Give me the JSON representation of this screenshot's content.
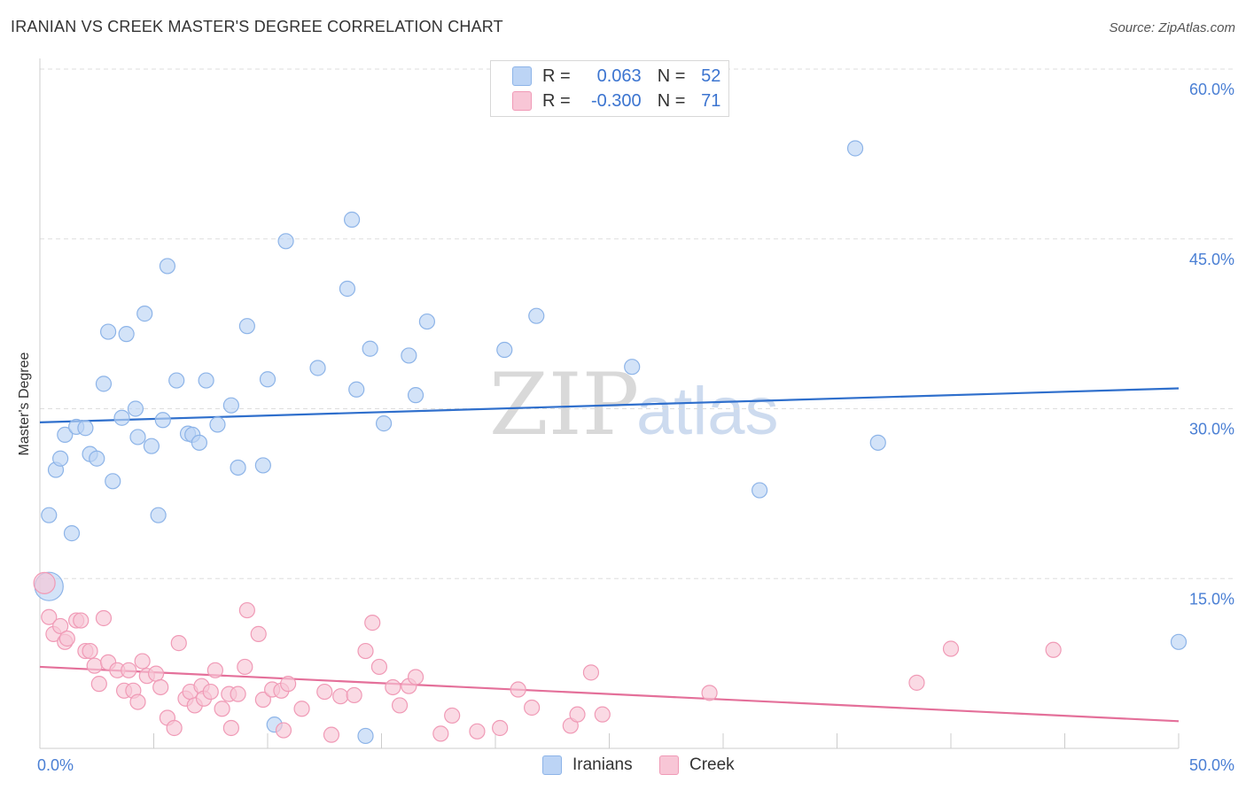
{
  "title": "IRANIAN VS CREEK MASTER'S DEGREE CORRELATION CHART",
  "source": "Source: ZipAtlas.com",
  "watermark": {
    "zip": "ZIP",
    "atlas": "atlas"
  },
  "colors": {
    "iranians_fill": "#bcd4f5",
    "iranians_stroke": "#8db4e8",
    "iranians_line": "#2f6fcc",
    "creek_fill": "#f8c6d6",
    "creek_stroke": "#f09ab6",
    "creek_line": "#e4709a",
    "tick_label": "#4a7fd4",
    "grid": "#dddddd"
  },
  "legend": {
    "rows": [
      {
        "r_label": "R =",
        "r_value": "0.063",
        "n_label": "N =",
        "n_value": "52"
      },
      {
        "r_label": "R =",
        "r_value": "-0.300",
        "n_label": "N =",
        "n_value": "71"
      }
    ],
    "bottom": [
      "Iranians",
      "Creek"
    ]
  },
  "chart_data": {
    "type": "scatter",
    "title": "IRANIAN VS CREEK MASTER'S DEGREE CORRELATION CHART",
    "xlabel": "",
    "ylabel": "Master's Degree",
    "xlim": [
      0,
      50
    ],
    "ylim": [
      0,
      60
    ],
    "x_tick_labels": [
      "0.0%",
      "50.0%"
    ],
    "y_ticks": [
      15,
      30,
      45,
      60
    ],
    "y_tick_labels": [
      "15.0%",
      "30.0%",
      "45.0%",
      "60.0%"
    ],
    "grid": true,
    "series": [
      {
        "name": "Iranians",
        "r": 0.063,
        "n": 52,
        "trend": {
          "x": [
            0,
            50
          ],
          "y": [
            28.8,
            31.8
          ]
        },
        "points": [
          [
            0.4,
            14.3
          ],
          [
            0.4,
            20.6
          ],
          [
            0.7,
            24.6
          ],
          [
            0.9,
            25.6
          ],
          [
            1.1,
            27.7
          ],
          [
            1.4,
            19.0
          ],
          [
            1.6,
            28.4
          ],
          [
            2.0,
            28.3
          ],
          [
            2.2,
            26.0
          ],
          [
            2.5,
            25.6
          ],
          [
            2.8,
            32.2
          ],
          [
            3.0,
            36.8
          ],
          [
            3.2,
            23.6
          ],
          [
            3.6,
            29.2
          ],
          [
            3.8,
            36.6
          ],
          [
            4.2,
            30.0
          ],
          [
            4.3,
            27.5
          ],
          [
            4.6,
            38.4
          ],
          [
            4.9,
            26.7
          ],
          [
            5.2,
            20.6
          ],
          [
            5.4,
            29.0
          ],
          [
            5.6,
            42.6
          ],
          [
            6.0,
            32.5
          ],
          [
            6.5,
            27.8
          ],
          [
            6.7,
            27.7
          ],
          [
            7.0,
            27.0
          ],
          [
            7.3,
            32.5
          ],
          [
            7.8,
            28.6
          ],
          [
            8.4,
            30.3
          ],
          [
            8.7,
            24.8
          ],
          [
            9.1,
            37.3
          ],
          [
            9.8,
            25.0
          ],
          [
            10.0,
            32.6
          ],
          [
            10.3,
            2.1
          ],
          [
            10.8,
            44.8
          ],
          [
            12.2,
            33.6
          ],
          [
            13.5,
            40.6
          ],
          [
            13.7,
            46.7
          ],
          [
            13.9,
            31.7
          ],
          [
            14.3,
            1.1
          ],
          [
            14.5,
            35.3
          ],
          [
            15.1,
            28.7
          ],
          [
            16.2,
            34.7
          ],
          [
            16.5,
            31.2
          ],
          [
            17.0,
            37.7
          ],
          [
            20.4,
            35.2
          ],
          [
            21.8,
            38.2
          ],
          [
            26.0,
            33.7
          ],
          [
            31.6,
            22.8
          ],
          [
            35.8,
            53.0
          ],
          [
            36.8,
            27.0
          ],
          [
            50.0,
            9.4
          ]
        ]
      },
      {
        "name": "Creek",
        "r": -0.3,
        "n": 71,
        "trend": {
          "x": [
            0,
            50
          ],
          "y": [
            7.2,
            2.4
          ]
        },
        "points": [
          [
            0.2,
            14.6
          ],
          [
            0.4,
            11.6
          ],
          [
            0.6,
            10.1
          ],
          [
            0.9,
            10.8
          ],
          [
            1.1,
            9.4
          ],
          [
            1.2,
            9.7
          ],
          [
            1.6,
            11.3
          ],
          [
            1.8,
            11.3
          ],
          [
            2.0,
            8.6
          ],
          [
            2.2,
            8.6
          ],
          [
            2.4,
            7.3
          ],
          [
            2.6,
            5.7
          ],
          [
            2.8,
            11.5
          ],
          [
            3.0,
            7.6
          ],
          [
            3.4,
            6.9
          ],
          [
            3.7,
            5.1
          ],
          [
            3.9,
            6.9
          ],
          [
            4.1,
            5.1
          ],
          [
            4.3,
            4.1
          ],
          [
            4.5,
            7.7
          ],
          [
            4.7,
            6.4
          ],
          [
            5.1,
            6.6
          ],
          [
            5.3,
            5.4
          ],
          [
            5.6,
            2.7
          ],
          [
            5.9,
            1.8
          ],
          [
            6.1,
            9.3
          ],
          [
            6.4,
            4.4
          ],
          [
            6.6,
            5.0
          ],
          [
            6.8,
            3.8
          ],
          [
            7.1,
            5.5
          ],
          [
            7.2,
            4.4
          ],
          [
            7.5,
            5.0
          ],
          [
            7.7,
            6.9
          ],
          [
            8.0,
            3.5
          ],
          [
            8.3,
            4.8
          ],
          [
            8.4,
            1.8
          ],
          [
            8.7,
            4.8
          ],
          [
            9.0,
            7.2
          ],
          [
            9.1,
            12.2
          ],
          [
            9.6,
            10.1
          ],
          [
            9.8,
            4.3
          ],
          [
            10.2,
            5.2
          ],
          [
            10.6,
            5.1
          ],
          [
            10.7,
            1.6
          ],
          [
            10.9,
            5.7
          ],
          [
            11.5,
            3.5
          ],
          [
            12.5,
            5.0
          ],
          [
            12.8,
            1.2
          ],
          [
            13.2,
            4.6
          ],
          [
            13.8,
            4.7
          ],
          [
            14.3,
            8.6
          ],
          [
            14.6,
            11.1
          ],
          [
            14.9,
            7.2
          ],
          [
            15.5,
            5.4
          ],
          [
            15.8,
            3.8
          ],
          [
            16.2,
            5.5
          ],
          [
            16.5,
            6.3
          ],
          [
            17.6,
            1.3
          ],
          [
            18.1,
            2.9
          ],
          [
            19.2,
            1.5
          ],
          [
            20.2,
            1.8
          ],
          [
            21.0,
            5.2
          ],
          [
            21.6,
            3.6
          ],
          [
            23.3,
            2.0
          ],
          [
            23.6,
            3.0
          ],
          [
            24.2,
            6.7
          ],
          [
            24.7,
            3.0
          ],
          [
            29.4,
            4.9
          ],
          [
            38.5,
            5.8
          ],
          [
            40.0,
            8.8
          ],
          [
            44.5,
            8.7
          ]
        ]
      }
    ]
  }
}
